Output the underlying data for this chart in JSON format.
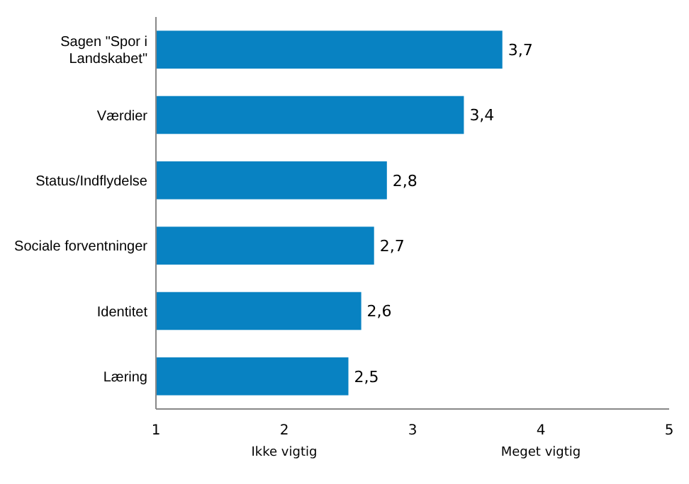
{
  "chart_data": {
    "type": "bar",
    "orientation": "horizontal",
    "categories": [
      "Sagen \"Spor i Landskabet\"",
      "Værdier",
      "Status/Indflydelse",
      "Sociale forventninger",
      "Identitet",
      "Læring"
    ],
    "values": [
      3.7,
      3.4,
      2.8,
      2.7,
      2.6,
      2.5
    ],
    "value_labels": [
      "3,7",
      "3,4",
      "2,8",
      "2,7",
      "2,6",
      "2,5"
    ],
    "color": "#0882c2",
    "xlim": [
      1,
      5
    ],
    "xticks": [
      1,
      2,
      3,
      4,
      5
    ],
    "grid": false,
    "annotations": [
      "Ikke vigtig",
      "Meget vigtig"
    ]
  }
}
